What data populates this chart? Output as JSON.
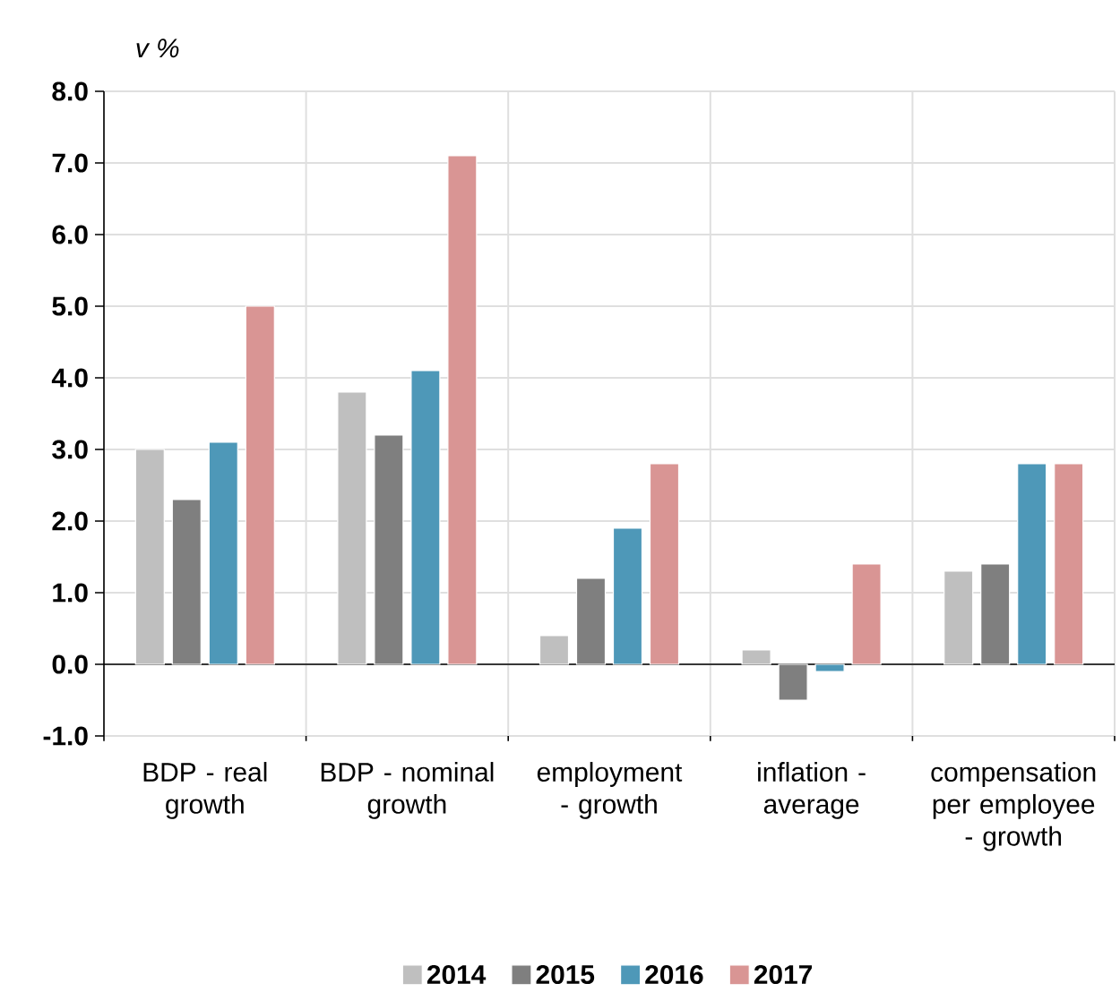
{
  "chart_data": {
    "type": "bar",
    "ylabel": "v %",
    "categories": [
      "BDP - real growth",
      "BDP - nominal growth",
      "employment - growth",
      "inflation - average",
      "compensation per employee - growth"
    ],
    "series": [
      {
        "name": "2014",
        "color": "#bfbfbf",
        "values": [
          3.0,
          3.8,
          0.4,
          0.2,
          1.3
        ]
      },
      {
        "name": "2015",
        "color": "#7f7f7f",
        "values": [
          2.3,
          3.2,
          1.2,
          -0.5,
          1.4
        ]
      },
      {
        "name": "2016",
        "color": "#4e98b8",
        "values": [
          3.1,
          4.1,
          1.9,
          -0.1,
          2.8
        ]
      },
      {
        "name": "2017",
        "color": "#d99594",
        "values": [
          5.0,
          7.1,
          2.8,
          1.4,
          2.8
        ]
      }
    ],
    "ylim": [
      -1,
      8
    ],
    "yticks": [
      {
        "value": -1,
        "label": "-1.0"
      },
      {
        "value": 0,
        "label": "0.0"
      },
      {
        "value": 1,
        "label": "1.0"
      },
      {
        "value": 2,
        "label": "2.0"
      },
      {
        "value": 3,
        "label": "3.0"
      },
      {
        "value": 4,
        "label": "4.0"
      },
      {
        "value": 5,
        "label": "5.0"
      },
      {
        "value": 6,
        "label": "6.0"
      },
      {
        "value": 7,
        "label": "7.0"
      },
      {
        "value": 8,
        "label": "8.0"
      }
    ],
    "grid": true,
    "legend": "bottom"
  }
}
